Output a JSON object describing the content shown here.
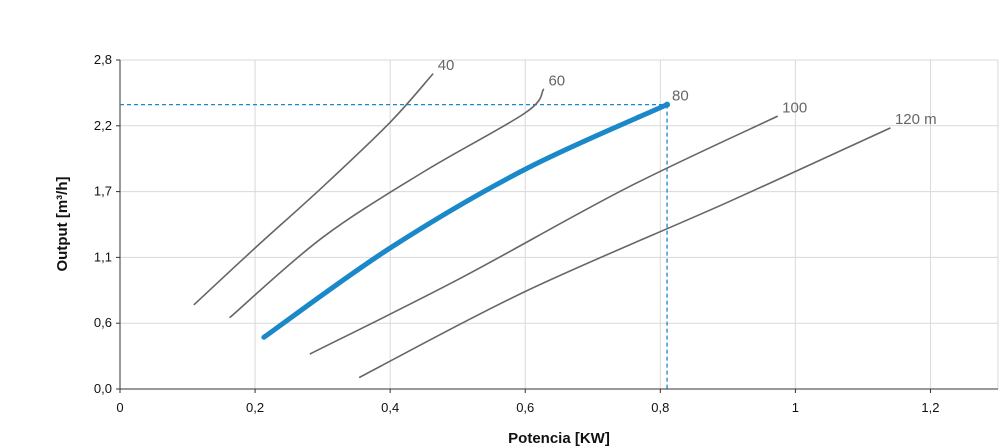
{
  "chart_data": {
    "type": "line",
    "xlabel": "Potencia  [KW]",
    "ylabel": "Output [m³/h]",
    "xlim": [
      0,
      1.3
    ],
    "ylim": [
      0,
      2.8
    ],
    "grid": true,
    "x_ticks": [
      {
        "value": 0,
        "label": "0"
      },
      {
        "value": 0.2,
        "label": "0,2"
      },
      {
        "value": 0.4,
        "label": "0,4"
      },
      {
        "value": 0.6,
        "label": "0,6"
      },
      {
        "value": 0.8,
        "label": "0,8"
      },
      {
        "value": 1.0,
        "label": "1"
      },
      {
        "value": 1.2,
        "label": "1,2"
      }
    ],
    "y_ticks": [
      {
        "value": 0.0,
        "label": "0,0"
      },
      {
        "value": 0.56,
        "label": "0,6"
      },
      {
        "value": 1.12,
        "label": "1,1"
      },
      {
        "value": 1.68,
        "label": "1,7"
      },
      {
        "value": 2.24,
        "label": "2,2"
      },
      {
        "value": 2.8,
        "label": "2,8"
      }
    ],
    "series": [
      {
        "name": "40",
        "color": "#666666",
        "highlight": false,
        "x": [
          0.11,
          0.2,
          0.3,
          0.4,
          0.463
        ],
        "y": [
          0.72,
          1.2,
          1.72,
          2.27,
          2.68
        ]
      },
      {
        "name": "60",
        "color": "#666666",
        "highlight": false,
        "x": [
          0.163,
          0.3,
          0.45,
          0.6,
          0.627
        ],
        "y": [
          0.61,
          1.29,
          1.85,
          2.35,
          2.55
        ]
      },
      {
        "name": "80",
        "color": "#1a88c9",
        "highlight": true,
        "x": [
          0.213,
          0.4,
          0.6,
          0.81
        ],
        "y": [
          0.44,
          1.2,
          1.87,
          2.42
        ]
      },
      {
        "name": "100",
        "color": "#666666",
        "highlight": false,
        "x": [
          0.282,
          0.5,
          0.75,
          0.973
        ],
        "y": [
          0.3,
          0.93,
          1.71,
          2.32
        ]
      },
      {
        "name": "120 m",
        "color": "#666666",
        "highlight": false,
        "x": [
          0.355,
          0.6,
          0.9,
          1.14
        ],
        "y": [
          0.1,
          0.83,
          1.59,
          2.22
        ]
      }
    ],
    "reference": {
      "x": 0.81,
      "y": 2.42,
      "color": "#1a88c9"
    }
  }
}
